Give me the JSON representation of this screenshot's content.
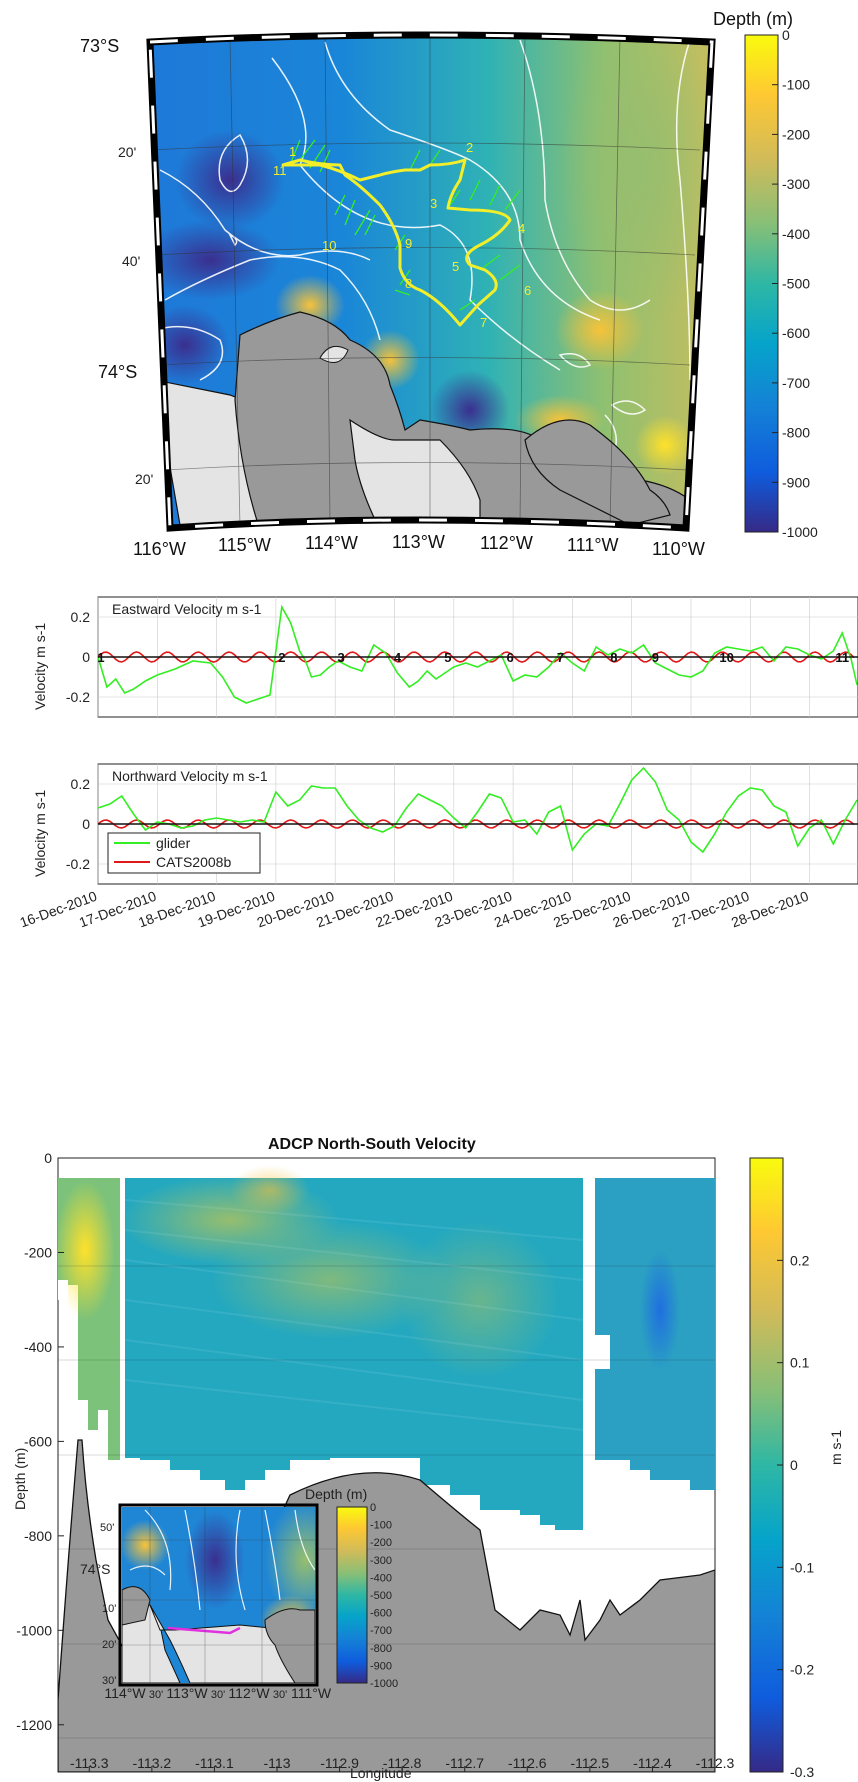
{
  "colors": {
    "glider": "#33ee22",
    "cats": "#e11818",
    "land_dark": "#999999",
    "land_light": "#e4e4e4",
    "track": "#f2ee2a",
    "inset_track": "#e030e0"
  },
  "chart_data": [
    {
      "id": "map",
      "type": "heatmap",
      "title": "",
      "colorbar_label": "Depth (m)",
      "colorbar_ticks": [
        "0",
        "-100",
        "-200",
        "-300",
        "-400",
        "-500",
        "-600",
        "-700",
        "-800",
        "-900",
        "-1000"
      ],
      "lat_labels": [
        "73°S",
        "20'",
        "40'",
        "74°S",
        "20'"
      ],
      "lon_labels": [
        "116°W",
        "115°W",
        "114°W",
        "113°W",
        "112°W",
        "111°W",
        "110°W"
      ],
      "waypoints": [
        "1",
        "11",
        "2",
        "3",
        "4",
        "5",
        "6",
        "7",
        "8",
        "9",
        "10"
      ]
    },
    {
      "id": "eastward",
      "type": "line",
      "title": "Eastward Velocity m s-1",
      "ylabel": "Velocity m s-1",
      "ylim": [
        -0.3,
        0.3
      ],
      "yticks": [
        "0.2",
        "0",
        "-0.2"
      ],
      "markers": [
        {
          "label": "1",
          "day": 0.05
        },
        {
          "label": "2",
          "day": 3.1
        },
        {
          "label": "3",
          "day": 4.1
        },
        {
          "label": "4",
          "day": 5.05
        },
        {
          "label": "5",
          "day": 5.9
        },
        {
          "label": "6",
          "day": 6.95
        },
        {
          "label": "7",
          "day": 7.8
        },
        {
          "label": "8",
          "day": 8.7
        },
        {
          "label": "9",
          "day": 9.4
        },
        {
          "label": "10",
          "day": 10.6
        },
        {
          "label": "11",
          "day": 12.55
        }
      ],
      "series": [
        {
          "name": "glider",
          "x": [
            0,
            0.15,
            0.3,
            0.45,
            0.6,
            0.8,
            1,
            1.3,
            1.6,
            1.9,
            2.1,
            2.3,
            2.5,
            2.7,
            2.9,
            3.1,
            3.25,
            3.4,
            3.5,
            3.6,
            3.75,
            3.9,
            4.05,
            4.25,
            4.45,
            4.65,
            4.85,
            5.05,
            5.25,
            5.4,
            5.55,
            5.7,
            5.85,
            6.0,
            6.2,
            6.4,
            6.6,
            6.8,
            7.0,
            7.2,
            7.4,
            7.6,
            7.8,
            8.0,
            8.2,
            8.4,
            8.6,
            8.8,
            9.0,
            9.2,
            9.4,
            9.6,
            9.8,
            10.0,
            10.2,
            10.4,
            10.6,
            10.8,
            11.0,
            11.2,
            11.4,
            11.6,
            11.8,
            12.0,
            12.2,
            12.4,
            12.55,
            12.7,
            12.8
          ],
          "values": [
            0,
            -0.15,
            -0.11,
            -0.18,
            -0.16,
            -0.12,
            -0.09,
            -0.06,
            -0.02,
            -0.03,
            -0.1,
            -0.2,
            -0.23,
            -0.21,
            -0.19,
            0.25,
            0.17,
            0.03,
            -0.02,
            -0.1,
            -0.09,
            -0.05,
            -0.02,
            -0.05,
            -0.07,
            0.06,
            0.02,
            -0.08,
            -0.15,
            -0.12,
            -0.07,
            -0.11,
            -0.08,
            -0.05,
            -0.03,
            -0.05,
            -0.02,
            0.01,
            -0.12,
            -0.09,
            -0.1,
            -0.05,
            0.02,
            -0.03,
            -0.07,
            0.05,
            0.01,
            0.04,
            0.02,
            0.06,
            -0.03,
            -0.06,
            -0.09,
            -0.1,
            -0.07,
            0.02,
            0.05,
            0.04,
            0.03,
            0.05,
            -0.02,
            0.05,
            0.04,
            0.01,
            -0.01,
            0.03,
            0.12,
            -0.01,
            -0.14
          ]
        },
        {
          "name": "CATS2008b",
          "x": [
            0,
            12.8
          ],
          "values": [
            0,
            0
          ],
          "amplitude": 0.025,
          "period": 0.52
        }
      ]
    },
    {
      "id": "northward",
      "type": "line",
      "title": "Northward Velocity m s-1",
      "ylabel": "Velocity m s-1",
      "ylim": [
        -0.3,
        0.3
      ],
      "yticks": [
        "0.2",
        "0",
        "-0.2"
      ],
      "x_tick_labels": [
        "16-Dec-2010",
        "17-Dec-2010",
        "18-Dec-2010",
        "19-Dec-2010",
        "20-Dec-2010",
        "21-Dec-2010",
        "22-Dec-2010",
        "23-Dec-2010",
        "24-Dec-2010",
        "25-Dec-2010",
        "26-Dec-2010",
        "27-Dec-2010",
        "28-Dec-2010"
      ],
      "legend": [
        "glider",
        "CATS2008b"
      ],
      "series": [
        {
          "name": "glider",
          "x": [
            0,
            0.2,
            0.4,
            0.6,
            0.8,
            1,
            1.2,
            1.4,
            1.6,
            1.8,
            2,
            2.2,
            2.4,
            2.6,
            2.8,
            3.0,
            3.2,
            3.4,
            3.6,
            3.8,
            4.0,
            4.2,
            4.4,
            4.6,
            4.8,
            5.0,
            5.2,
            5.4,
            5.6,
            5.8,
            6.0,
            6.2,
            6.4,
            6.6,
            6.8,
            7.0,
            7.2,
            7.4,
            7.6,
            7.8,
            8.0,
            8.2,
            8.4,
            8.6,
            8.8,
            9.0,
            9.2,
            9.4,
            9.6,
            9.8,
            10.0,
            10.2,
            10.4,
            10.6,
            10.8,
            11.0,
            11.2,
            11.4,
            11.6,
            11.8,
            12.0,
            12.2,
            12.4,
            12.6,
            12.8
          ],
          "values": [
            0.08,
            0.1,
            0.14,
            0.05,
            -0.03,
            0.01,
            0,
            -0.02,
            -0.01,
            0.02,
            0.03,
            0.02,
            0.01,
            0.02,
            0.01,
            0.16,
            0.09,
            0.12,
            0.19,
            0.18,
            0.18,
            0.09,
            0.02,
            -0.02,
            -0.04,
            -0.01,
            0.08,
            0.15,
            0.12,
            0.09,
            0.03,
            -0.02,
            0.06,
            0.15,
            0.13,
            0.01,
            0.02,
            -0.05,
            0.06,
            0.09,
            -0.13,
            -0.05,
            0.0,
            -0.01,
            0.1,
            0.22,
            0.28,
            0.21,
            0.07,
            0.02,
            -0.09,
            -0.14,
            -0.05,
            0.06,
            0.14,
            0.18,
            0.17,
            0.09,
            0.06,
            -0.11,
            -0.02,
            0.02,
            -0.1,
            0.02,
            0.12
          ]
        },
        {
          "name": "CATS2008b",
          "x": [
            0,
            12.8
          ],
          "values": [
            0,
            0
          ],
          "amplitude": 0.02,
          "period": 0.52
        }
      ]
    },
    {
      "id": "adcp",
      "type": "heatmap",
      "title": "ADCP North-South Velocity",
      "xlabel": "Longitude",
      "ylabel": "Depth (m)",
      "xlim": [
        -113.35,
        -112.3
      ],
      "ylim": [
        -1300,
        0
      ],
      "x_tick_labels": [
        "-113.3",
        "-113.2",
        "-113.1",
        "-113",
        "-112.9",
        "-112.8",
        "-112.7",
        "-112.6",
        "-112.5",
        "-112.4",
        "-112.3"
      ],
      "y_tick_labels": [
        "0",
        "-200",
        "-400",
        "-600",
        "-800",
        "-1000",
        "-1200"
      ],
      "colorbar_label": "m s-1",
      "colorbar_ticks": [
        "0.2",
        "0.1",
        "0",
        "-0.1",
        "-0.2",
        "-0.3"
      ],
      "inset": {
        "colorbar_label": "Depth (m)",
        "colorbar_ticks": [
          "0",
          "-100",
          "-200",
          "-300",
          "-400",
          "-500",
          "-600",
          "-700",
          "-800",
          "-900",
          "-1000"
        ],
        "lat_labels": [
          "50'",
          "74°S",
          "10'",
          "20'",
          "30'"
        ],
        "lon_labels": [
          "114°W",
          "30'",
          "113°W",
          "30'",
          "112°W",
          "30'",
          "111°W"
        ]
      }
    }
  ]
}
